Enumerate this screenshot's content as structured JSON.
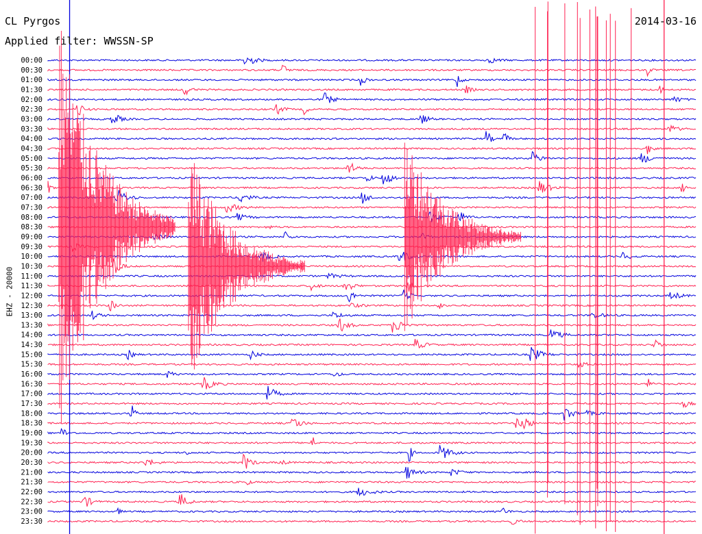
{
  "header": {
    "station": "CL Pyrgos",
    "filter": "Applied filter: WWSSN-SP",
    "date": "2014-03-16"
  },
  "chart_data": {
    "type": "line",
    "title": "CL Pyrgos",
    "subtitle": "Applied filter: WWSSN-SP",
    "date": "2014-03-16",
    "ylabel": "EHZ - 20000",
    "row_interval_minutes": 30,
    "rows": [
      "00:00",
      "00:30",
      "01:00",
      "01:30",
      "02:00",
      "02:30",
      "03:00",
      "03:30",
      "04:00",
      "04:30",
      "05:00",
      "05:30",
      "06:00",
      "06:30",
      "07:00",
      "07:30",
      "08:00",
      "08:30",
      "09:00",
      "09:30",
      "10:00",
      "10:30",
      "11:00",
      "11:30",
      "12:00",
      "12:30",
      "13:00",
      "13:30",
      "14:00",
      "14:30",
      "15:00",
      "15:30",
      "16:00",
      "16:30",
      "17:00",
      "17:30",
      "18:00",
      "18:30",
      "19:00",
      "19:30",
      "20:00",
      "20:30",
      "21:00",
      "21:30",
      "22:00",
      "22:30",
      "23:00",
      "23:30"
    ],
    "colors": [
      "#0000dd",
      "#ff2050"
    ],
    "event_markers_minutes": [
      1,
      28.5
    ],
    "large_events": [
      {
        "row": "08:30",
        "minute": 0.5,
        "amplitude": 70
      },
      {
        "row": "10:30",
        "minute": 6.5,
        "amplitude": 40
      },
      {
        "row": "09:00",
        "minute": 16.5,
        "amplitude": 35
      }
    ],
    "grid": false
  }
}
